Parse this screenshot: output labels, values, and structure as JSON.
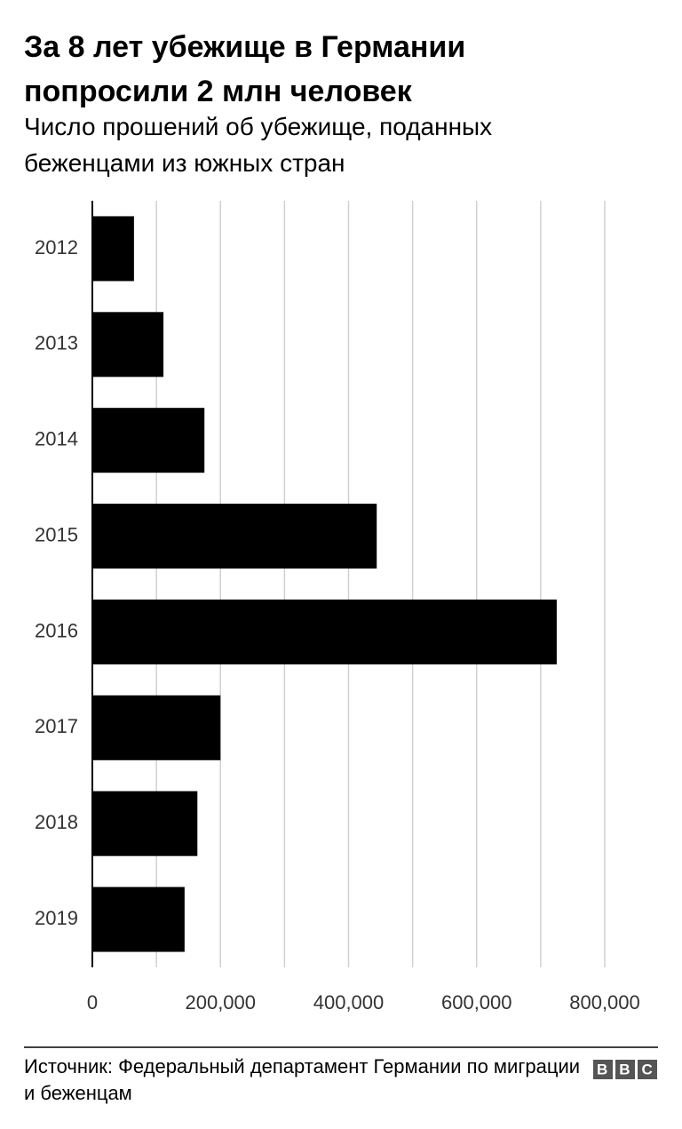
{
  "chart_data": {
    "type": "bar",
    "orientation": "horizontal",
    "title": "За 8 лет убежище в Германии попросили 2 млн человек",
    "subtitle": "Число прошений об убежище, поданных беженцами из южных стран",
    "categories": [
      "2012",
      "2013",
      "2014",
      "2015",
      "2016",
      "2017",
      "2018",
      "2019"
    ],
    "values": [
      65000,
      111000,
      175000,
      444000,
      725000,
      200000,
      164000,
      144000
    ],
    "color": "#000000",
    "xlim": [
      0,
      800000
    ],
    "xticks": [
      0,
      {
        "value": 200000,
        "label": "200,000"
      },
      {
        "value": 400000,
        "label": "400,000"
      },
      {
        "value": 600000,
        "label": "600,000"
      },
      {
        "value": 800000,
        "label": "800,000"
      }
    ],
    "xminor": [
      100000,
      300000,
      500000,
      700000
    ],
    "grid": true,
    "source": "Источник: Федеральный департамент Германии по миграции и беженцам",
    "logo": "BBC"
  }
}
